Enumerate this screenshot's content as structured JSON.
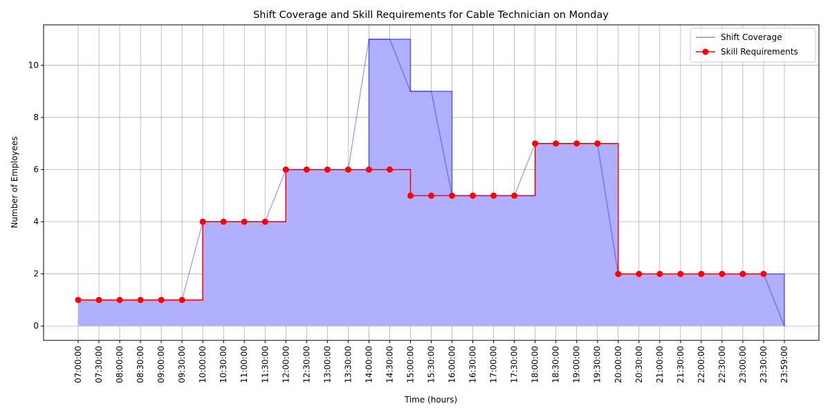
{
  "chart_data": {
    "type": "step",
    "title": "Shift Coverage and Skill Requirements for Cable Technician on Monday",
    "x_label": "Time (hours)",
    "y_label": "Number of Employees",
    "categories": [
      "07:00:00",
      "07:30:00",
      "08:00:00",
      "08:30:00",
      "09:00:00",
      "09:30:00",
      "10:00:00",
      "10:30:00",
      "11:00:00",
      "11:30:00",
      "12:00:00",
      "12:30:00",
      "13:00:00",
      "13:30:00",
      "14:00:00",
      "14:30:00",
      "15:00:00",
      "15:30:00",
      "16:00:00",
      "16:30:00",
      "17:00:00",
      "17:30:00",
      "18:00:00",
      "18:30:00",
      "19:00:00",
      "19:30:00",
      "20:00:00",
      "20:30:00",
      "21:00:00",
      "21:30:00",
      "22:00:00",
      "22:30:00",
      "23:00:00",
      "23:30:00",
      "23:59:00"
    ],
    "series": [
      {
        "name": "Shift Coverage",
        "color": "#0000ff",
        "fill": "#b0b0ff",
        "values": [
          1,
          1,
          1,
          1,
          1,
          1,
          4,
          4,
          4,
          4,
          6,
          6,
          6,
          6,
          11,
          11,
          9,
          9,
          5,
          5,
          5,
          5,
          7,
          7,
          7,
          7,
          2,
          2,
          2,
          2,
          2,
          2,
          2,
          2,
          0
        ]
      },
      {
        "name": "Skill Requirements",
        "color": "#ff0000",
        "values": [
          1,
          1,
          1,
          1,
          1,
          1,
          4,
          4,
          4,
          4,
          6,
          6,
          6,
          6,
          6,
          6,
          5,
          5,
          5,
          5,
          5,
          5,
          7,
          7,
          7,
          7,
          2,
          2,
          2,
          2,
          2,
          2,
          2,
          2,
          null
        ]
      }
    ],
    "ylim": [
      -0.55,
      11.55
    ],
    "yticks": [
      0,
      2,
      4,
      6,
      8,
      10
    ],
    "grid": true,
    "legend": "upper right"
  }
}
